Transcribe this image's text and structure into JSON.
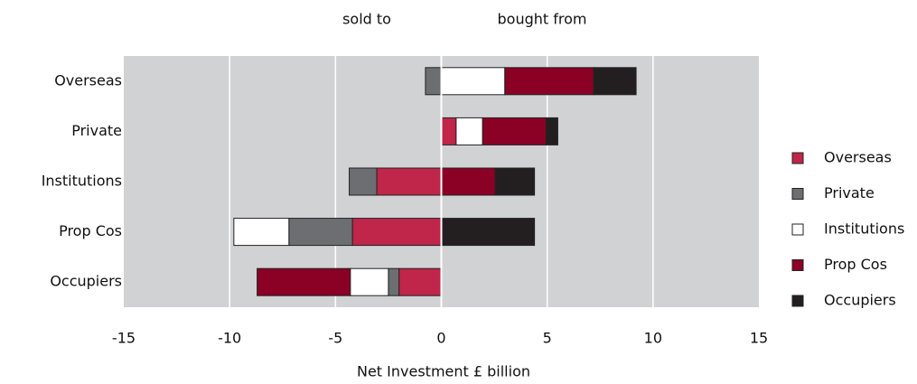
{
  "chart_data": {
    "type": "diverging-stacked-bar",
    "annotations": [
      "sold to",
      "bought from"
    ],
    "x_label": "Net Investment £ billion",
    "categories": [
      "Overseas",
      "Private",
      "Institutions",
      "Prop Cos",
      "Occupiers"
    ],
    "series": [
      {
        "name": "Overseas",
        "color": "#c0254a",
        "values": [
          null,
          0.7,
          -3.05,
          -4.2,
          -2.0
        ]
      },
      {
        "name": "Private",
        "color": "#6d6e71",
        "values": [
          -0.75,
          null,
          -1.3,
          -3.0,
          -0.5
        ]
      },
      {
        "name": "Institutions",
        "color": "#ffffff",
        "values": [
          3.0,
          1.25,
          null,
          -2.6,
          -1.8
        ]
      },
      {
        "name": "Prop Cos",
        "color": "#8b0025",
        "values": [
          4.2,
          3.0,
          2.55,
          null,
          -4.4
        ]
      },
      {
        "name": "Occupiers",
        "color": "#231f20",
        "values": [
          2.0,
          0.55,
          1.85,
          4.4,
          null
        ]
      }
    ],
    "xlim": [
      -15,
      15
    ],
    "xticks": [
      -15,
      -10,
      -5,
      0,
      5,
      10,
      15
    ],
    "grid": true,
    "legend": "right"
  }
}
